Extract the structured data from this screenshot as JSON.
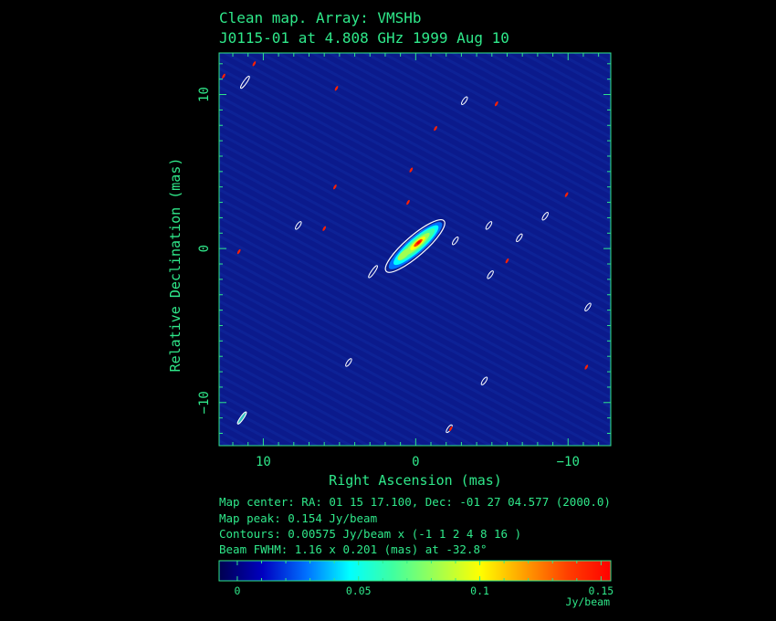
{
  "header": {
    "title_line1": "Clean map.  Array: VMSHb",
    "title_line2": "J0115-01 at 4.808 GHz 1999 Aug 10"
  },
  "info": {
    "map_center": "Map center:  RA: 01 15 17.100,  Dec: -01 27 04.577 (2000.0)",
    "map_peak": "Map peak: 0.154 Jy/beam",
    "contours": "Contours: 0.00575 Jy/beam x (-1 1 2 4 8 16 )",
    "beam": "Beam FWHM: 1.16 x 0.201 (mas) at -32.8°"
  },
  "colors": {
    "axis_text": "#2fe88a",
    "background": "#000000",
    "map_floor": "#0b1a8c",
    "contour": "#ffffff",
    "colormap": [
      "#00004f",
      "#0000c0",
      "#0070ff",
      "#00ffff",
      "#40ffa0",
      "#a0ff50",
      "#ffff00",
      "#ffa000",
      "#ff4000",
      "#ff0000"
    ]
  },
  "chart_data": {
    "type": "heatmap",
    "xlabel": "Right Ascension  (mas)",
    "ylabel": "Relative Declination  (mas)",
    "xlim": [
      12.9,
      -12.8
    ],
    "ylim": [
      -12.8,
      12.7
    ],
    "x_ticks": [
      {
        "value": 10,
        "label": "10"
      },
      {
        "value": 0,
        "label": "0"
      },
      {
        "value": -10,
        "label": "-10"
      }
    ],
    "y_ticks": [
      {
        "value": 10,
        "label": "10"
      },
      {
        "value": 0,
        "label": "0"
      },
      {
        "value": -10,
        "label": "-10"
      }
    ],
    "colorbar": {
      "range": [
        -0.0075,
        0.154
      ],
      "ticks": [
        {
          "value": 0,
          "label": "0"
        },
        {
          "value": 0.05,
          "label": "0.05"
        },
        {
          "value": 0.1,
          "label": "0.1"
        },
        {
          "value": 0.15,
          "label": "0.15"
        }
      ],
      "unit": "Jy/beam"
    },
    "peak": {
      "ra": -0.2,
      "dec": 0.4,
      "value": 0.154
    },
    "contour_base": 0.00575,
    "contour_levels": [
      -1,
      1,
      2,
      4,
      8,
      16
    ],
    "beam": {
      "major": 1.16,
      "minor": 0.201,
      "pa": -32.8
    },
    "contour_islands": [
      [
        11.2,
        10.8
      ],
      [
        -3.2,
        9.6
      ],
      [
        -4.8,
        1.5
      ],
      [
        -2.6,
        0.5
      ],
      [
        -4.9,
        -1.7
      ],
      [
        2.8,
        -1.5
      ],
      [
        -6.8,
        0.7
      ],
      [
        -8.5,
        2.1
      ],
      [
        -11.3,
        -3.8
      ],
      [
        4.4,
        -7.4
      ],
      [
        -4.5,
        -8.6
      ],
      [
        11.4,
        -11.0
      ],
      [
        -2.2,
        -11.7
      ],
      [
        7.7,
        1.5
      ]
    ],
    "bright_pixels": [
      [
        12.6,
        11.2
      ],
      [
        10.6,
        12.0
      ],
      [
        5.2,
        10.4
      ],
      [
        -5.3,
        9.4
      ],
      [
        -1.3,
        7.8
      ],
      [
        0.3,
        5.1
      ],
      [
        5.3,
        4.0
      ],
      [
        0.5,
        3.0
      ],
      [
        6.0,
        1.3
      ],
      [
        11.6,
        -0.2
      ],
      [
        -9.9,
        3.5
      ],
      [
        -6.0,
        -0.8
      ],
      [
        -11.2,
        -7.7
      ],
      [
        -2.3,
        -11.7
      ]
    ]
  }
}
